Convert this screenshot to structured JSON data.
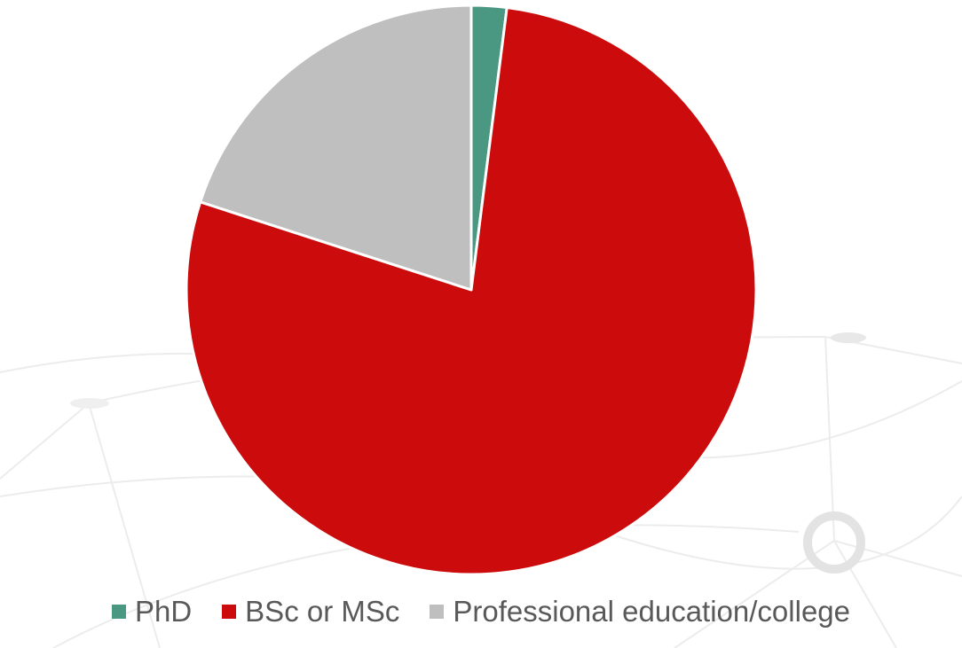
{
  "chart_data": {
    "type": "pie",
    "title": "",
    "legend_position": "bottom",
    "start_angle_deg": 0,
    "direction": "clockwise",
    "slices": [
      {
        "label": "PhD",
        "value": 2,
        "color": "#4a9882"
      },
      {
        "label": "BSc or MSc",
        "value": 78,
        "color": "#cc0c0c"
      },
      {
        "label": "Professional education/college",
        "value": 20,
        "color": "#bfbfbf"
      }
    ]
  },
  "background": {
    "decorative_network_color": "#e6e6e6"
  }
}
